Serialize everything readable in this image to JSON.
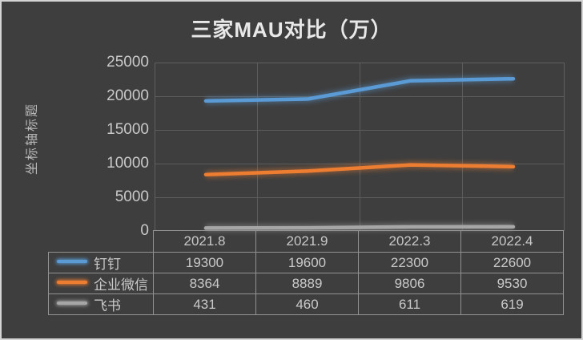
{
  "frame": {
    "background_color": "#3e3e3e",
    "border_color": "#d4d4d4"
  },
  "chart_data": {
    "type": "line",
    "title": "三家MAU对比（万）",
    "ylabel": "坐标轴标题",
    "xlabel": "",
    "categories": [
      "2021.8",
      "2021.9",
      "2022.3",
      "2022.4"
    ],
    "series": [
      {
        "name": "钉钉",
        "color": "#5b9bd5",
        "values": [
          19300,
          19600,
          22300,
          22600
        ]
      },
      {
        "name": "企业微信",
        "color": "#ed7d31",
        "values": [
          8364,
          8889,
          9806,
          9530
        ]
      },
      {
        "name": "飞书",
        "color": "#a6a6a6",
        "values": [
          431,
          460,
          611,
          619
        ]
      }
    ],
    "ylim": [
      0,
      25000
    ],
    "yticks": [
      25000,
      20000,
      15000,
      10000,
      5000,
      0
    ],
    "grid": true,
    "legend_position": "data-table-left",
    "data_table_shown": true,
    "markers": false
  }
}
